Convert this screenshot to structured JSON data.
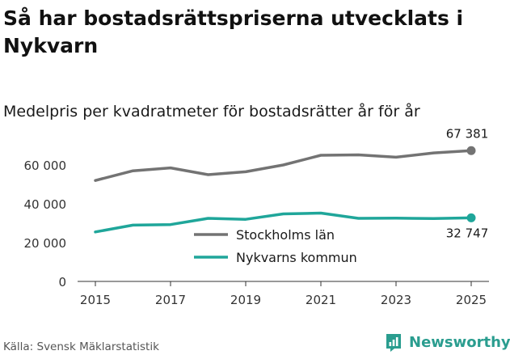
{
  "title": "Så har bostadsrättspriserna utvecklats i Nykvarn",
  "subtitle": "Medelpris per kvadratmeter för bostadsrätter år för år",
  "source": "Källa: Svensk Mäklarstatistik",
  "brand": {
    "name": "Newsworthy",
    "icon": "newsworthy-logo-icon",
    "color": "#2a9d8f"
  },
  "chart_data": {
    "type": "line",
    "title": "Medelpris per kvadratmeter för bostadsrätter år för år",
    "xlabel": "",
    "ylabel": "",
    "x": [
      2015,
      2016,
      2017,
      2018,
      2019,
      2020,
      2021,
      2022,
      2023,
      2024,
      2025
    ],
    "xticks": [
      2015,
      2017,
      2019,
      2021,
      2023,
      2025
    ],
    "xtick_labels": [
      "2015",
      "2017",
      "2019",
      "2021",
      "2023",
      "2025"
    ],
    "ylim": [
      0,
      70000
    ],
    "yticks": [
      0,
      20000,
      40000,
      60000
    ],
    "ytick_labels": [
      "0",
      "20 000",
      "40 000",
      "60 000"
    ],
    "grid": false,
    "legend_position": "center",
    "series": [
      {
        "name": "Stockholms län",
        "color": "#737373",
        "values": [
          52000,
          57000,
          58500,
          55000,
          56500,
          60000,
          65000,
          65200,
          64000,
          66200,
          67381
        ],
        "end_label": "67 381"
      },
      {
        "name": "Nykvarns kommun",
        "color": "#1fa69a",
        "values": [
          25500,
          29000,
          29300,
          32500,
          32000,
          34800,
          35200,
          32500,
          32600,
          32400,
          32747
        ],
        "end_label": "32 747"
      }
    ]
  }
}
